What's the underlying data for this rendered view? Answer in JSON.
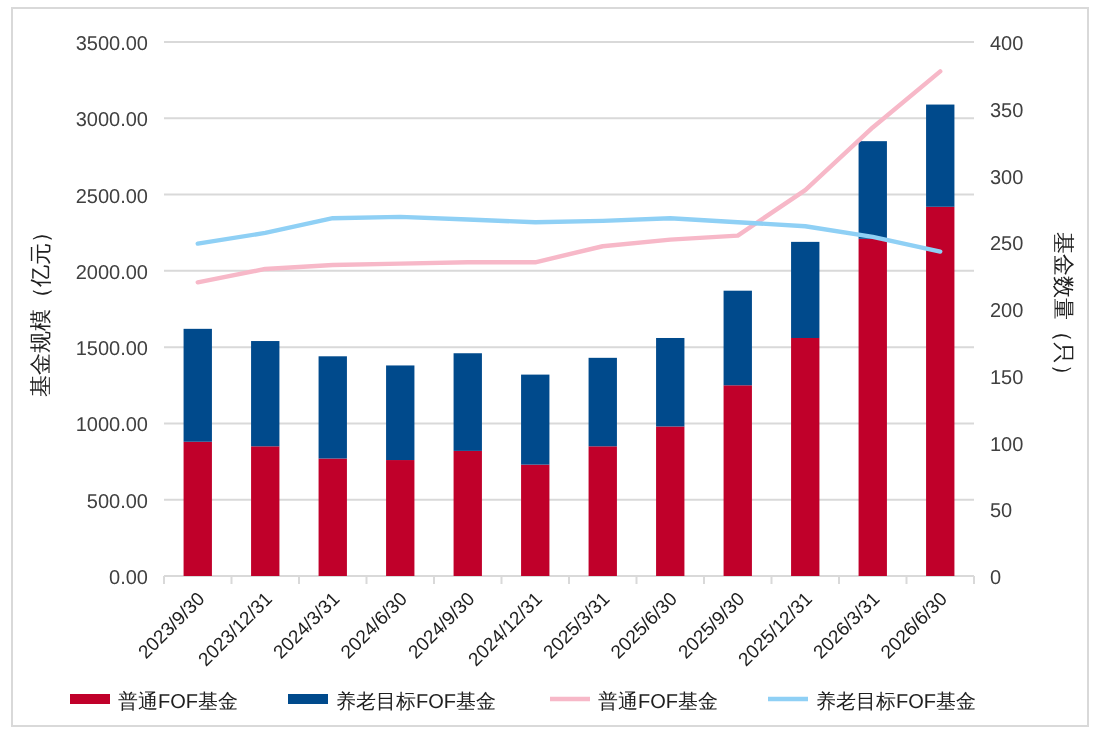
{
  "chart_data": {
    "type": "bar",
    "stacked": true,
    "grid": "y",
    "legend": "bottom",
    "ylabel": "基金规模（亿元）",
    "y2label": "基金数量（只）",
    "categories": [
      "2023/9/30",
      "2023/12/31",
      "2024/3/31",
      "2024/6/30",
      "2024/9/30",
      "2024/12/31",
      "2025/3/31",
      "2025/6/30",
      "2025/9/30",
      "2025/12/31",
      "2026/3/31",
      "2026/6/30"
    ],
    "series": [
      {
        "name": "普通FOF基金",
        "color": "#c0002a",
        "values": [
          880,
          850,
          770,
          760,
          820,
          730,
          850,
          980,
          1250,
          1560,
          2210,
          2420
        ]
      },
      {
        "name": "养老目标FOF基金",
        "color": "#004a8c",
        "values": [
          740,
          690,
          670,
          620,
          640,
          590,
          580,
          580,
          620,
          630,
          640,
          670
        ]
      },
      {
        "name": "普通FOF基金",
        "type": "line",
        "axis": "y2",
        "color": "#f7b8c8",
        "values": [
          220,
          230,
          233,
          234,
          235,
          235,
          247,
          252,
          255,
          289,
          336,
          378
        ]
      },
      {
        "name": "养老目标FOF基金",
        "type": "line",
        "axis": "y2",
        "color": "#8fd0f5",
        "values": [
          249,
          257,
          268,
          269,
          267,
          265,
          266,
          268,
          265,
          262,
          254,
          243
        ]
      }
    ],
    "ylim": [
      0,
      3500
    ],
    "yticks": [
      {
        "value": 0,
        "label": "0.00"
      },
      {
        "value": 500,
        "label": "500.00"
      },
      {
        "value": 1000,
        "label": "1000.00"
      },
      {
        "value": 1500,
        "label": "1500.00"
      },
      {
        "value": 2000,
        "label": "2000.00"
      },
      {
        "value": 2500,
        "label": "2500.00"
      },
      {
        "value": 3000,
        "label": "3000.00"
      },
      {
        "value": 3500,
        "label": "3500.00"
      }
    ],
    "y2lim": [
      0,
      400
    ],
    "y2ticks": [
      0,
      50,
      100,
      150,
      200,
      250,
      300,
      350,
      400
    ]
  }
}
